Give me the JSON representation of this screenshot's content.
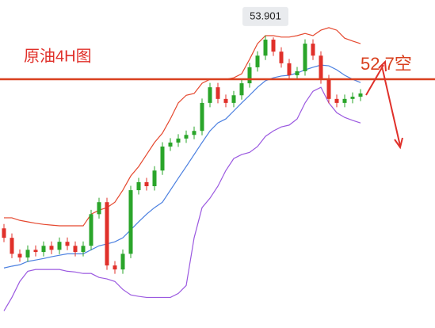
{
  "chart_data": {
    "type": "candlestick",
    "title": "原油4H图",
    "categories": [
      null,
      null,
      null,
      null,
      null,
      null,
      null,
      null,
      null,
      null,
      null,
      null,
      null,
      null,
      null,
      null,
      null,
      null,
      null,
      null,
      null,
      null,
      null,
      null,
      null,
      null,
      null,
      null,
      null,
      null,
      null,
      null,
      null,
      null,
      null,
      null,
      null,
      null,
      null,
      null,
      null,
      null,
      null,
      null,
      null,
      null
    ],
    "open": [
      48.6,
      48.34,
      47.9,
      47.8,
      48.01,
      47.95,
      48.12,
      48.01,
      48.23,
      48.12,
      47.95,
      48.12,
      48.99,
      49.32,
      47.58,
      47.47,
      47.9,
      49.65,
      49.87,
      49.76,
      50.19,
      50.85,
      50.96,
      51.07,
      51.17,
      51.28,
      52.05,
      52.48,
      52.16,
      52.05,
      52.26,
      52.59,
      53.03,
      53.35,
      53.79,
      53.46,
      53.14,
      52.81,
      52.92,
      53.68,
      53.35,
      52.7,
      52.16,
      52.05,
      52.16,
      52.22
    ],
    "high": [
      48.72,
      48.46,
      48.02,
      48.13,
      48.13,
      48.24,
      48.24,
      48.35,
      48.35,
      48.24,
      48.24,
      49.11,
      49.44,
      49.44,
      47.7,
      48.02,
      49.77,
      49.99,
      49.99,
      50.31,
      50.97,
      51.08,
      51.19,
      51.29,
      51.4,
      52.17,
      52.6,
      52.6,
      52.28,
      52.38,
      52.71,
      53.15,
      53.47,
      53.901,
      53.85,
      53.58,
      53.26,
      53.04,
      53.8,
      53.8,
      53.47,
      52.82,
      52.28,
      52.28,
      52.34,
      52.43
    ],
    "low": [
      48.22,
      47.78,
      47.68,
      47.68,
      47.83,
      47.83,
      47.89,
      47.89,
      48.0,
      47.83,
      47.83,
      48.0,
      48.87,
      47.46,
      47.35,
      47.35,
      47.78,
      49.53,
      49.64,
      49.64,
      50.07,
      50.73,
      50.84,
      50.95,
      51.05,
      51.16,
      51.93,
      52.04,
      51.93,
      51.93,
      52.14,
      52.47,
      52.91,
      53.23,
      53.34,
      53.02,
      52.69,
      52.69,
      52.8,
      53.23,
      52.58,
      52.04,
      51.93,
      51.93,
      52.04,
      52.1
    ],
    "close": [
      48.34,
      47.9,
      47.8,
      48.01,
      47.95,
      48.12,
      48.01,
      48.23,
      48.12,
      47.95,
      48.12,
      48.99,
      49.32,
      47.58,
      47.47,
      47.9,
      49.65,
      49.87,
      49.76,
      50.19,
      50.85,
      50.96,
      51.07,
      51.17,
      51.28,
      52.05,
      52.48,
      52.16,
      52.05,
      52.26,
      52.59,
      53.03,
      53.35,
      53.79,
      53.46,
      53.14,
      52.81,
      52.92,
      53.68,
      53.35,
      52.7,
      52.16,
      52.05,
      52.16,
      52.22,
      52.31
    ],
    "up_color": "#2aa52a",
    "down_color": "#e0302a",
    "bands": [
      {
        "color": "#e5482f",
        "values": [
          48.89,
          48.89,
          48.82,
          48.78,
          48.74,
          48.71,
          48.69,
          48.67,
          48.67,
          48.67,
          48.67,
          48.99,
          49.1,
          49.17,
          49.32,
          49.65,
          50.04,
          50.3,
          50.63,
          50.96,
          51.22,
          51.61,
          52.05,
          52.26,
          52.31,
          52.59,
          52.7,
          52.7,
          52.7,
          52.74,
          52.85,
          53.25,
          53.68,
          53.9,
          53.9,
          53.86,
          53.86,
          53.9,
          53.96,
          53.9,
          54.05,
          54.12,
          54.05,
          53.83,
          53.75,
          53.68
        ]
      },
      {
        "color": "#4a7fe0",
        "values": [
          47.51,
          47.56,
          47.6,
          47.69,
          47.73,
          47.77,
          47.82,
          47.86,
          47.9,
          47.9,
          47.9,
          48.01,
          48.12,
          48.17,
          48.23,
          48.34,
          48.56,
          48.78,
          48.99,
          49.17,
          49.32,
          49.65,
          49.98,
          50.3,
          50.63,
          50.96,
          51.28,
          51.5,
          51.61,
          51.83,
          52.05,
          52.26,
          52.48,
          52.66,
          52.74,
          52.79,
          52.81,
          52.87,
          52.96,
          53.03,
          53.09,
          53.07,
          52.96,
          52.81,
          52.7,
          52.61
        ]
      },
      {
        "color": "#9b59e0",
        "values": [
          46.33,
          46.7,
          47.14,
          47.42,
          47.47,
          47.47,
          47.47,
          47.47,
          47.42,
          47.4,
          47.36,
          47.36,
          47.25,
          47.21,
          47.14,
          46.92,
          46.77,
          46.73,
          46.7,
          46.7,
          46.7,
          46.7,
          46.81,
          47.03,
          48.34,
          49.17,
          49.43,
          49.76,
          50.19,
          50.52,
          50.63,
          50.69,
          50.85,
          51.13,
          51.28,
          51.39,
          51.44,
          51.61,
          52.05,
          52.37,
          52.48,
          52.05,
          51.78,
          51.65,
          51.57,
          51.5
        ]
      }
    ],
    "max_label": {
      "value": 53.901,
      "label": "53.901"
    },
    "level": {
      "value": 52.7,
      "label": "52.7空",
      "color": "#d9401f"
    },
    "ylim": [
      45.86,
      54.88
    ]
  }
}
